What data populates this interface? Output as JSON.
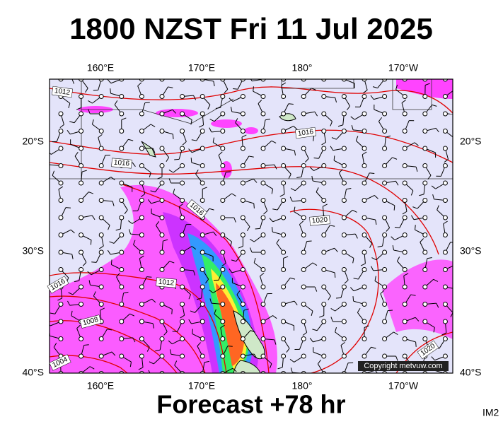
{
  "header": {
    "title": "1800 NZST Fri 11 Jul 2025"
  },
  "map": {
    "longitude_labels": [
      "160°E",
      "170°E",
      "180°",
      "170°W"
    ],
    "latitude_labels": [
      "20°S",
      "30°S",
      "40°S"
    ],
    "isobar_labels": [
      "1012",
      "1016",
      "1016",
      "1016",
      "1020",
      "1012",
      "1016",
      "1008",
      "1004",
      "1020"
    ],
    "copyright": "Copyright metvuw.com"
  },
  "footer": {
    "forecast": "Forecast +78 hr",
    "code": "IM2"
  }
}
